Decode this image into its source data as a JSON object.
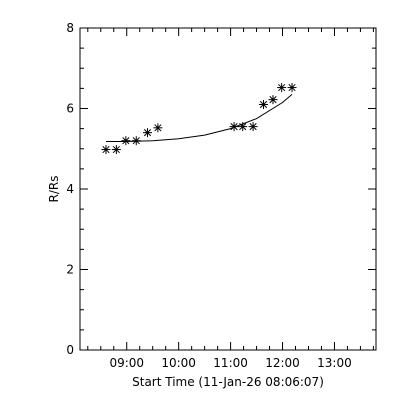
{
  "chart_data": {
    "type": "scatter",
    "xlabel": "Start Time (11-Jan-26 08:06:07)",
    "ylabel": "R/Rs",
    "xlim": [
      "08:06",
      "13:48"
    ],
    "ylim": [
      0,
      8
    ],
    "x_ticks": [
      "09:00",
      "10:00",
      "11:00",
      "12:00",
      "13:00"
    ],
    "y_ticks": [
      0,
      2,
      4,
      6,
      8
    ],
    "grid": false,
    "marker": "asterisk",
    "points": [
      {
        "x": "08:36",
        "y": 4.98
      },
      {
        "x": "08:48",
        "y": 4.98
      },
      {
        "x": "08:59",
        "y": 5.2
      },
      {
        "x": "09:11",
        "y": 5.2
      },
      {
        "x": "09:24",
        "y": 5.4
      },
      {
        "x": "09:36",
        "y": 5.52
      },
      {
        "x": "11:04",
        "y": 5.55
      },
      {
        "x": "11:14",
        "y": 5.55
      },
      {
        "x": "11:26",
        "y": 5.55
      },
      {
        "x": "11:38",
        "y": 6.1
      },
      {
        "x": "11:49",
        "y": 6.22
      },
      {
        "x": "11:59",
        "y": 6.52
      },
      {
        "x": "12:11",
        "y": 6.52
      }
    ],
    "fit": {
      "x": [
        "08:36",
        "09:00",
        "09:30",
        "10:00",
        "10:30",
        "11:00",
        "11:30",
        "12:00",
        "12:11"
      ],
      "y": [
        5.18,
        5.18,
        5.2,
        5.25,
        5.34,
        5.5,
        5.75,
        6.15,
        6.35
      ]
    }
  }
}
